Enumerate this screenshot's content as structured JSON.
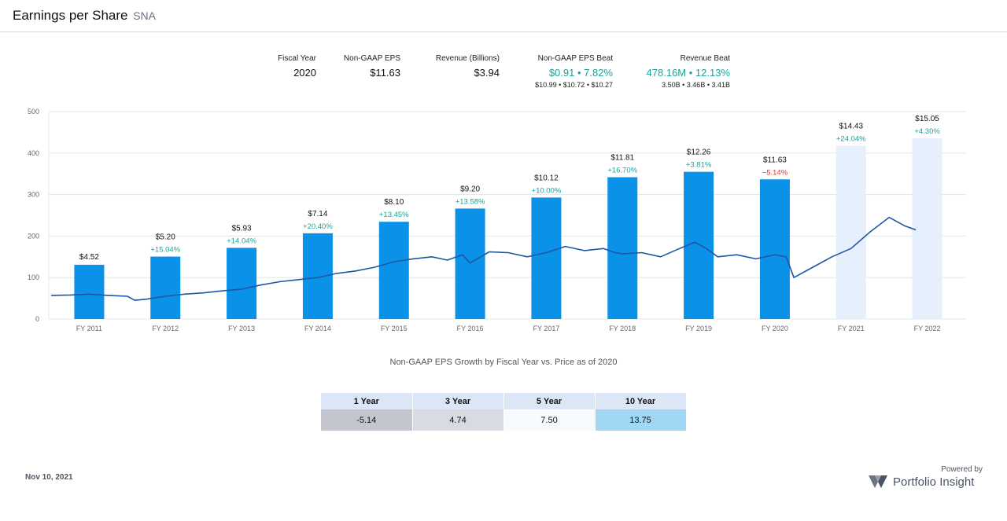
{
  "header": {
    "title": "Earnings per Share",
    "ticker": "SNA"
  },
  "summary": {
    "fiscal_year": {
      "label": "Fiscal Year",
      "value": "2020"
    },
    "eps": {
      "label": "Non-GAAP EPS",
      "value": "$11.63"
    },
    "revenue": {
      "label": "Revenue (Billions)",
      "value": "$3.94"
    },
    "eps_beat": {
      "label": "Non-GAAP EPS Beat",
      "value": "$0.91  • 7.82%",
      "sub": "$10.99 • $10.72 • $10.27"
    },
    "revenue_beat": {
      "label": "Revenue Beat",
      "value": "478.16M  • 12.13%",
      "sub": "3.50B • 3.46B • 3.41B"
    }
  },
  "colors": {
    "bar_actual": "#0a91e8",
    "bar_estimate": "#e6effc",
    "price_line": "#1f56a6",
    "growth_positive": "#1aa39a",
    "growth_negative": "#e03131",
    "grid": "#e5e5e5"
  },
  "chart_data": {
    "type": "bar",
    "title": "",
    "xlabel": "",
    "ylabel": "",
    "ylim": [
      0,
      500
    ],
    "yticks": [
      0,
      100,
      200,
      300,
      400,
      500
    ],
    "grid": true,
    "categories": [
      "FY 2011",
      "FY 2012",
      "FY 2013",
      "FY 2014",
      "FY 2015",
      "FY 2016",
      "FY 2017",
      "FY 2018",
      "FY 2019",
      "FY 2020",
      "FY 2021",
      "FY 2022"
    ],
    "series": [
      {
        "values": [
          4.52,
          5.2,
          5.93,
          7.14,
          8.1,
          9.2,
          10.12,
          11.81,
          12.26,
          11.63,
          14.43,
          15.05
        ]
      }
    ],
    "estimate": [
      false,
      false,
      false,
      false,
      false,
      false,
      false,
      false,
      false,
      false,
      true,
      true
    ],
    "value_labels": [
      "$4.52",
      "$5.20",
      "$5.93",
      "$7.14",
      "$8.10",
      "$9.20",
      "$10.12",
      "$11.81",
      "$12.26",
      "$11.63",
      "$14.43",
      "$15.05"
    ],
    "growth_labels": [
      "",
      "+15.04%",
      "+14.04%",
      "+20.40%",
      "+13.45%",
      "+13.58%",
      "+10.00%",
      "+16.70%",
      "+3.81%",
      "−5.14%",
      "+24.04%",
      "+4.30%"
    ],
    "price_series": {
      "x": [
        2010.5,
        2010.75,
        2011.0,
        2011.25,
        2011.5,
        2011.6,
        2011.75,
        2012.0,
        2012.25,
        2012.5,
        2012.75,
        2013.0,
        2013.25,
        2013.5,
        2013.75,
        2014.0,
        2014.25,
        2014.5,
        2014.75,
        2015.0,
        2015.25,
        2015.5,
        2015.7,
        2015.9,
        2016.0,
        2016.25,
        2016.5,
        2016.75,
        2017.0,
        2017.25,
        2017.5,
        2017.75,
        2017.9,
        2018.0,
        2018.25,
        2018.5,
        2018.75,
        2018.95,
        2019.1,
        2019.25,
        2019.5,
        2019.75,
        2020.0,
        2020.15,
        2020.25,
        2020.5,
        2020.75,
        2021.0,
        2021.25,
        2021.5,
        2021.7,
        2021.85
      ],
      "y": [
        57,
        58,
        60,
        57,
        55,
        45,
        48,
        55,
        60,
        63,
        68,
        72,
        82,
        90,
        95,
        100,
        110,
        116,
        125,
        138,
        145,
        150,
        142,
        155,
        135,
        162,
        160,
        150,
        160,
        175,
        165,
        170,
        160,
        157,
        160,
        150,
        170,
        185,
        170,
        150,
        155,
        145,
        155,
        150,
        100,
        125,
        150,
        170,
        210,
        245,
        225,
        215
      ]
    }
  },
  "x_axis_price_scale_note": "",
  "footer_caption": "Non-GAAP EPS Growth by Fiscal Year vs. Price as of 2020",
  "growth_table": {
    "headers": [
      "1 Year",
      "3 Year",
      "5 Year",
      "10 Year"
    ],
    "values": [
      "-5.14",
      "4.74",
      "7.50",
      "13.75"
    ],
    "cell_colors": [
      "#c3c6cf",
      "#d9dbe2",
      "#f7fbfe",
      "#9fd7f5"
    ]
  },
  "footer": {
    "date": "Nov 10, 2021",
    "powered_by": "Powered by",
    "brand": "Portfolio Insight"
  }
}
